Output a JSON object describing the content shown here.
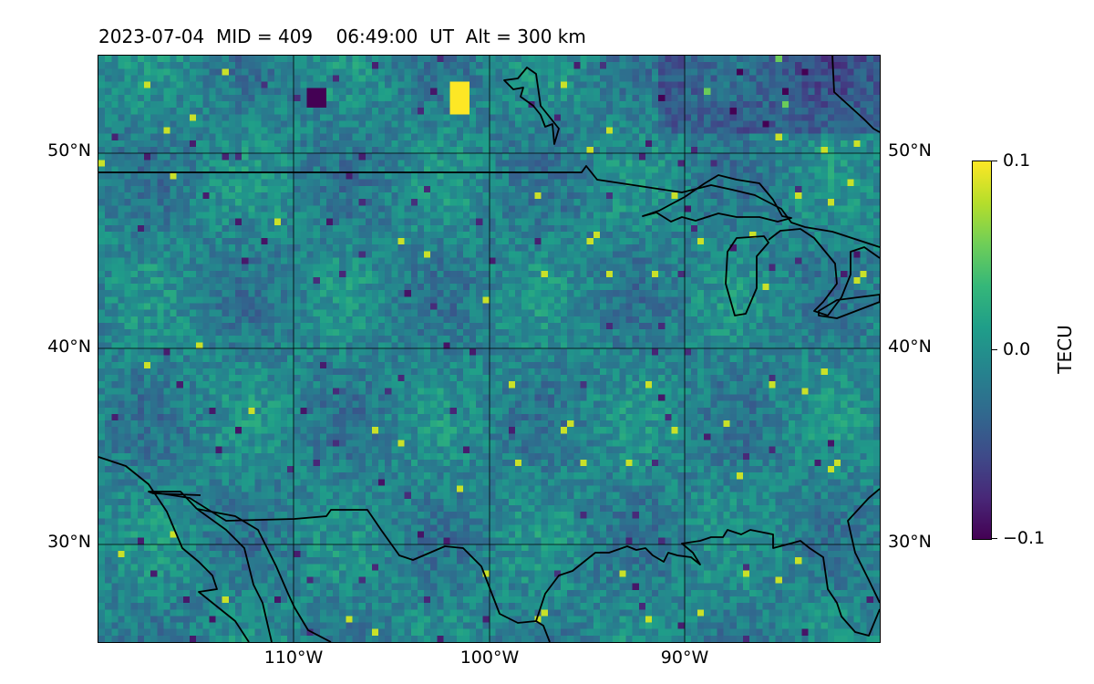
{
  "title": "2023-07-04  MID = 409    06:49:00  UT  Alt = 300 km",
  "map": {
    "type": "heatmap",
    "lon_range": [
      -120,
      -80
    ],
    "lat_range": [
      25,
      55
    ],
    "grid": true,
    "lat_ticks": [
      "30°N",
      "40°N",
      "50°N"
    ],
    "lon_ticks": [
      "110°W",
      "100°W",
      "90°W"
    ]
  },
  "colorbar": {
    "label": "TECU",
    "min": -0.1,
    "max": 0.1,
    "ticks": [
      "0.1",
      "0.0",
      "−0.1"
    ],
    "colormap": "viridis"
  }
}
